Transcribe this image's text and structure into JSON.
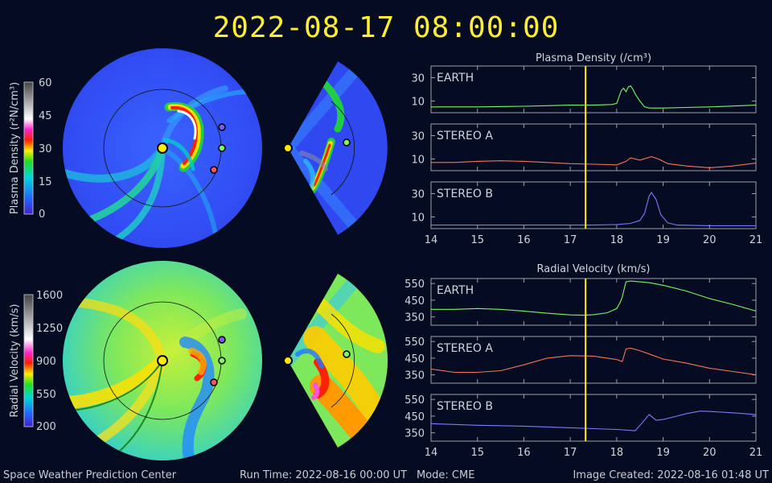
{
  "title": "2022-08-17 08:00:00",
  "footer": {
    "org": "Space Weather Prediction Center",
    "run_time": "Run Time: 2022-08-16 00:00 UT",
    "mode": "Mode: CME",
    "image_created": "Image Created: 2022-08-16 01:48 UT"
  },
  "colorbars": {
    "density": {
      "label": "Plasma Density (r²N/cm³)",
      "ticks": [
        "60",
        "45",
        "30",
        "15",
        "0"
      ]
    },
    "velocity": {
      "label": "Radial Velocity (km/s)",
      "ticks": [
        "1600",
        "1250",
        "900",
        "550",
        "200"
      ]
    }
  },
  "colors": {
    "earth": "#7cf56a",
    "stereo_a": "#f2765e",
    "stereo_b": "#7a7cff",
    "sun": "#ffee00",
    "cursor": "#ffee00",
    "stereo_b_marker": "#7b5cf0",
    "stereo_a_marker": "#f05a5a"
  },
  "chart_data": [
    {
      "type": "line",
      "title": "Plasma Density (/cm³)",
      "xlim": [
        14,
        21
      ],
      "xticks": [
        "14",
        "15",
        "16",
        "17",
        "18",
        "19",
        "20",
        "21"
      ],
      "current_time": 17.33,
      "panels": [
        {
          "name": "EARTH",
          "color": "#7cf56a",
          "ylim": [
            0,
            40
          ],
          "yticks": [
            10,
            30
          ],
          "x": [
            14,
            15,
            16,
            16.5,
            17,
            17.5,
            17.9,
            18.0,
            18.1,
            18.15,
            18.2,
            18.25,
            18.3,
            18.35,
            18.4,
            18.5,
            18.6,
            18.7,
            19,
            19.5,
            20,
            21
          ],
          "y": [
            5,
            5,
            5.5,
            6,
            6.5,
            6.5,
            7,
            8,
            19,
            21,
            18,
            22,
            23,
            20,
            16,
            10,
            5,
            4,
            4,
            4.5,
            5,
            6.5
          ]
        },
        {
          "name": "STEREO A",
          "color": "#f2765e",
          "ylim": [
            0,
            40
          ],
          "yticks": [
            10,
            30
          ],
          "x": [
            14,
            14.5,
            15,
            15.5,
            16,
            16.5,
            17,
            17.5,
            18,
            18.2,
            18.3,
            18.5,
            18.75,
            18.9,
            19.1,
            19.5,
            20,
            20.5,
            21
          ],
          "y": [
            7,
            7,
            8,
            8.5,
            8,
            7,
            6,
            5.5,
            5,
            8,
            11,
            9,
            12,
            10,
            6,
            4,
            2.5,
            4,
            6.5
          ]
        },
        {
          "name": "STEREO B",
          "color": "#7a7cff",
          "ylim": [
            0,
            40
          ],
          "yticks": [
            10,
            30
          ],
          "x": [
            14,
            15,
            16,
            17,
            17.5,
            18,
            18.3,
            18.5,
            18.6,
            18.7,
            18.75,
            18.85,
            18.95,
            19.1,
            19.3,
            20,
            21
          ],
          "y": [
            3,
            3,
            3,
            3,
            3,
            3.5,
            4.5,
            7,
            13,
            28,
            31,
            25,
            12,
            5,
            3,
            2.5,
            2.5
          ]
        }
      ]
    },
    {
      "type": "line",
      "title": "Radial Velocity (km/s)",
      "xlim": [
        14,
        21
      ],
      "xticks": [
        "14",
        "15",
        "16",
        "17",
        "18",
        "19",
        "20",
        "21"
      ],
      "current_time": 17.33,
      "panels": [
        {
          "name": "EARTH",
          "color": "#7cf56a",
          "ylim": [
            300,
            580
          ],
          "yticks": [
            350,
            450,
            550
          ],
          "x": [
            14,
            14.5,
            15,
            15.5,
            16,
            16.5,
            17,
            17.3,
            17.5,
            17.8,
            18,
            18.08,
            18.12,
            18.2,
            18.3,
            18.5,
            18.7,
            19,
            19.5,
            20,
            20.5,
            21
          ],
          "y": [
            395,
            395,
            400,
            395,
            385,
            372,
            362,
            360,
            363,
            375,
            400,
            440,
            470,
            560,
            565,
            560,
            555,
            540,
            505,
            460,
            425,
            385
          ]
        },
        {
          "name": "STEREO A",
          "color": "#f2765e",
          "ylim": [
            300,
            580
          ],
          "yticks": [
            350,
            450,
            550
          ],
          "x": [
            14,
            14.5,
            15,
            15.5,
            16,
            16.5,
            17,
            17.5,
            18,
            18.12,
            18.2,
            18.3,
            18.5,
            18.8,
            19,
            19.5,
            20,
            20.5,
            21
          ],
          "y": [
            385,
            365,
            365,
            375,
            410,
            450,
            465,
            462,
            442,
            430,
            505,
            510,
            495,
            465,
            445,
            420,
            390,
            370,
            350
          ]
        },
        {
          "name": "STEREO B",
          "color": "#7a7cff",
          "ylim": [
            300,
            580
          ],
          "yticks": [
            350,
            450,
            550
          ],
          "x": [
            14,
            14.5,
            15,
            16,
            17,
            17.5,
            18,
            18.4,
            18.55,
            18.7,
            18.85,
            19,
            19.3,
            19.5,
            19.8,
            20,
            20.5,
            21
          ],
          "y": [
            405,
            400,
            395,
            390,
            380,
            375,
            370,
            363,
            410,
            460,
            425,
            430,
            450,
            465,
            480,
            478,
            470,
            460
          ]
        }
      ]
    }
  ]
}
